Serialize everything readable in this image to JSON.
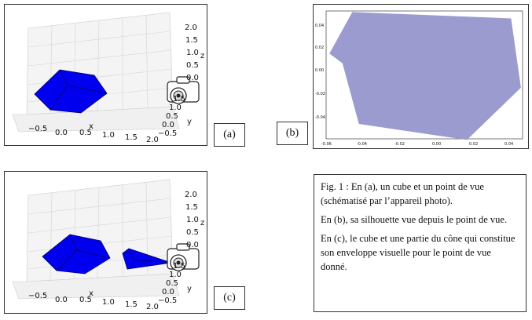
{
  "panels": {
    "a": {
      "label": "(a)"
    },
    "b": {
      "label": "(b)"
    },
    "c": {
      "label": "(c)"
    }
  },
  "axes3d": {
    "x_ticks": [
      "−0.5",
      "0.0",
      "0.5",
      "1.0",
      "1.5",
      "2.0"
    ],
    "y_ticks": [
      "−0.5",
      "0.0",
      "0.5",
      "1.0",
      "1.5"
    ],
    "z_ticks": [
      "2.0",
      "1.5",
      "1.0",
      "0.5",
      "0.0"
    ],
    "x_label": "x",
    "y_label": "y",
    "z_label": "z"
  },
  "plot2d": {
    "x_ticks": [
      "-0.06",
      "-0.04",
      "-0.02",
      "0.00",
      "0.02",
      "0.04"
    ],
    "y_ticks": [
      "0.04",
      "0.02",
      "0.00",
      "-0.02",
      "-0.04"
    ]
  },
  "colors": {
    "cube": "#0000ee",
    "silhouette": "#9b9bd0",
    "grid": "#d4d4d4"
  },
  "chart_data": {
    "type": "area",
    "silhouette_polygon": [
      [
        -0.066,
        0.02
      ],
      [
        -0.052,
        0.059
      ],
      [
        0.045,
        0.053
      ],
      [
        0.051,
        -0.012
      ],
      [
        0.018,
        -0.061
      ],
      [
        -0.048,
        -0.046
      ],
      [
        -0.058,
        0.011
      ]
    ],
    "xlim": [
      -0.068,
      0.052
    ],
    "ylim": [
      -0.06,
      0.06
    ]
  },
  "caption": {
    "p1": "Fig. 1 : En (a), un cube et un point de vue (schématisé par l’appareil photo).",
    "p2": "En (b),  sa silhouette vue depuis le point de vue.",
    "p3": "En (c), le cube et une partie du cône qui constitue son enveloppe visuelle pour le point de vue donné."
  }
}
